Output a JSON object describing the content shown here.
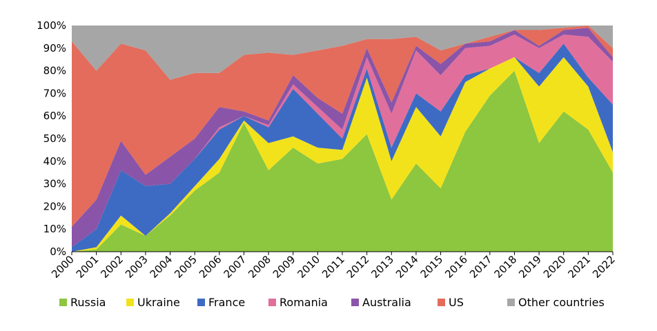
{
  "chart_data": {
    "type": "area",
    "stacked": true,
    "normalized": true,
    "categories": [
      "2000",
      "2001",
      "2002",
      "2003",
      "2004",
      "2005",
      "2006",
      "2007",
      "2008",
      "2009",
      "2010",
      "2011",
      "2012",
      "2013",
      "2014",
      "2015",
      "2016",
      "2017",
      "2018",
      "2019",
      "2020",
      "2021",
      "2022"
    ],
    "ylim": [
      0,
      100
    ],
    "y_ticks": [
      "0%",
      "10%",
      "20%",
      "30%",
      "40%",
      "50%",
      "60%",
      "70%",
      "80%",
      "90%",
      "100%"
    ],
    "grid": false,
    "legend_position": "bottom",
    "series": [
      {
        "name": "Russia",
        "color": "#8dc63f",
        "values": [
          0,
          1,
          12,
          7,
          16,
          27,
          35,
          57,
          36,
          46,
          39,
          41,
          52,
          23,
          39,
          28,
          53,
          69,
          80,
          48,
          62,
          54,
          35
        ]
      },
      {
        "name": "Ukraine",
        "color": "#f2e21c",
        "values": [
          0,
          1,
          4,
          0,
          1,
          2,
          6,
          1,
          12,
          5,
          7,
          4,
          25,
          17,
          25,
          23,
          22,
          12,
          6,
          25,
          24,
          19,
          9
        ]
      },
      {
        "name": "France",
        "color": "#3d6bc3",
        "values": [
          2,
          8,
          20,
          22,
          13,
          12,
          13,
          2,
          7,
          21,
          15,
          5,
          4,
          6,
          6,
          11,
          3,
          0,
          0,
          6,
          6,
          4,
          21
        ]
      },
      {
        "name": "Romania",
        "color": "#e16f9c",
        "values": [
          0,
          0,
          0,
          0,
          0,
          0,
          1,
          0,
          1,
          2,
          3,
          4,
          5,
          15,
          19,
          16,
          12,
          10,
          10,
          11,
          4,
          18,
          19
        ]
      },
      {
        "name": "Australia",
        "color": "#8a55a8",
        "values": [
          9,
          13,
          13,
          5,
          12,
          9,
          9,
          2,
          2,
          4,
          4,
          7,
          4,
          5,
          2,
          5,
          2,
          2,
          2,
          1,
          2,
          4,
          2
        ]
      },
      {
        "name": "US",
        "color": "#e46c5c",
        "values": [
          82,
          57,
          43,
          55,
          34,
          29,
          15,
          25,
          30,
          9,
          21,
          30,
          4,
          28,
          4,
          6,
          0,
          2,
          0,
          7,
          1,
          1,
          4
        ]
      },
      {
        "name": "Other countries",
        "color": "#a6a6a6",
        "values": [
          7,
          20,
          8,
          11,
          24,
          21,
          21,
          13,
          12,
          13,
          11,
          9,
          6,
          6,
          5,
          11,
          8,
          5,
          2,
          2,
          1,
          0,
          10
        ]
      }
    ]
  }
}
